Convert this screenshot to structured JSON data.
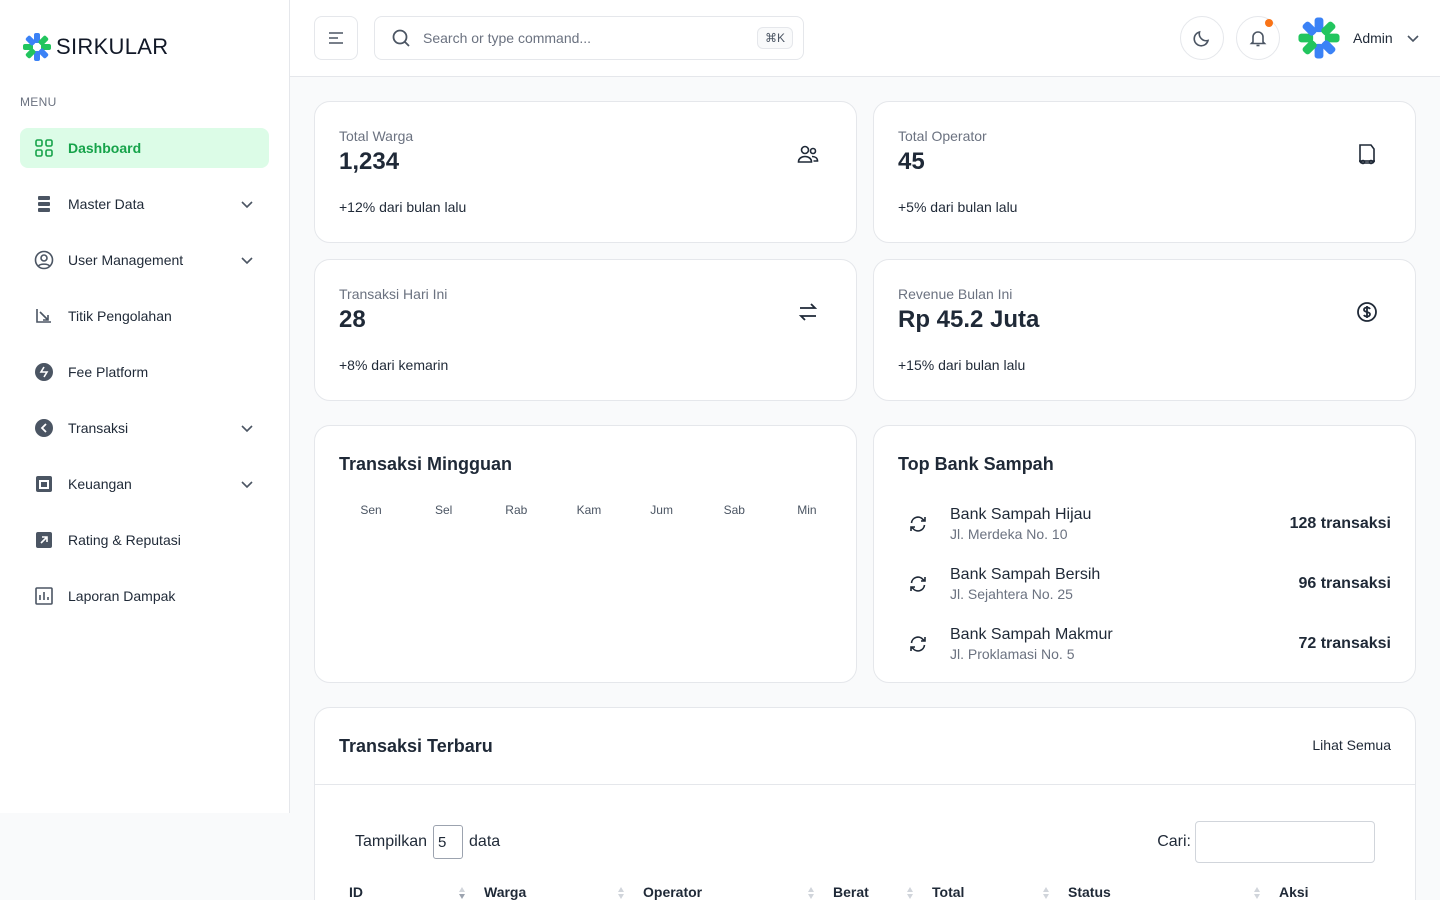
{
  "app": {
    "name": "SIRKULAR"
  },
  "sidebar": {
    "menu_label": "MENU",
    "items": [
      {
        "label": "Dashboard",
        "icon": "grid-icon",
        "active": true,
        "has_submenu": false
      },
      {
        "label": "Master Data",
        "icon": "database-icon",
        "active": false,
        "has_submenu": true
      },
      {
        "label": "User Management",
        "icon": "user-circle-icon",
        "active": false,
        "has_submenu": true
      },
      {
        "label": "Titik Pengolahan",
        "icon": "recycle-icon",
        "active": false,
        "has_submenu": false
      },
      {
        "label": "Fee Platform",
        "icon": "fee-icon",
        "active": false,
        "has_submenu": false
      },
      {
        "label": "Transaksi",
        "icon": "arrow-left-circle-icon",
        "active": false,
        "has_submenu": true
      },
      {
        "label": "Keuangan",
        "icon": "wallet-icon",
        "active": false,
        "has_submenu": true
      },
      {
        "label": "Rating & Reputasi",
        "icon": "rating-icon",
        "active": false,
        "has_submenu": false
      },
      {
        "label": "Laporan Dampak",
        "icon": "report-icon",
        "active": false,
        "has_submenu": false
      }
    ]
  },
  "header": {
    "search_placeholder": "Search or type command...",
    "shortcut": "⌘K",
    "user_name": "Admin",
    "notification_dot_color": "#f97316"
  },
  "stats": [
    {
      "label": "Total Warga",
      "value": "1,234",
      "change": "+12% dari bulan lalu",
      "icon": "users-icon"
    },
    {
      "label": "Total Operator",
      "value": "45",
      "change": "+5% dari bulan lalu",
      "icon": "operator-icon"
    },
    {
      "label": "Transaksi Hari Ini",
      "value": "28",
      "change": "+8% dari kemarin",
      "icon": "swap-icon"
    },
    {
      "label": "Revenue Bulan Ini",
      "value": "Rp 45.2 Juta",
      "change": "+15% dari bulan lalu",
      "icon": "dollar-circle-icon"
    }
  ],
  "weekly": {
    "title": "Transaksi Mingguan",
    "days": [
      "Sen",
      "Sel",
      "Rab",
      "Kam",
      "Jum",
      "Sab",
      "Min"
    ]
  },
  "top_bank": {
    "title": "Top Bank Sampah",
    "items": [
      {
        "name": "Bank Sampah Hijau",
        "address": "Jl. Merdeka No. 10",
        "count": "128 transaksi"
      },
      {
        "name": "Bank Sampah Bersih",
        "address": "Jl. Sejahtera No. 25",
        "count": "96 transaksi"
      },
      {
        "name": "Bank Sampah Makmur",
        "address": "Jl. Proklamasi No. 5",
        "count": "72 transaksi"
      }
    ]
  },
  "recent": {
    "title": "Transaksi Terbaru",
    "see_all": "Lihat Semua",
    "show_prefix": "Tampilkan",
    "show_value": "5",
    "show_suffix": "data",
    "search_label": "Cari:",
    "columns": [
      "ID",
      "Warga",
      "Operator",
      "Berat",
      "Total",
      "Status",
      "Aksi"
    ]
  },
  "colors": {
    "accent": "#16a34a",
    "accent_bg": "#dcfce7"
  }
}
